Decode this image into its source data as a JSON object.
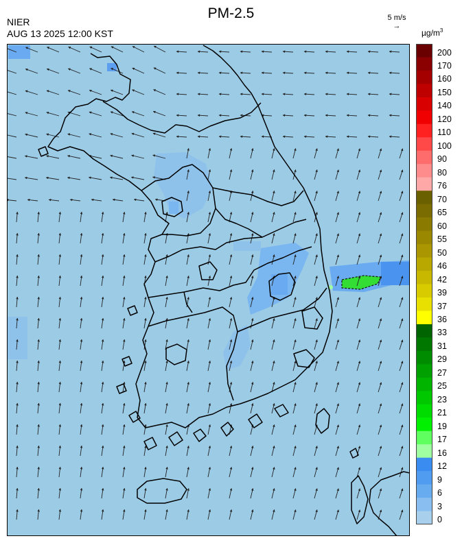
{
  "header": {
    "title": "PM-2.5",
    "agency": "NIER",
    "timestamp": "AUG 13 2025 12:00 KST",
    "wind_scale_label": "5 m/s",
    "unit_label": "µg/m",
    "unit_superscript": "3"
  },
  "legend": {
    "labels": [
      "200",
      "170",
      "160",
      "150",
      "140",
      "120",
      "110",
      "100",
      "90",
      "80",
      "76",
      "70",
      "65",
      "60",
      "55",
      "50",
      "46",
      "42",
      "39",
      "37",
      "36",
      "33",
      "31",
      "29",
      "27",
      "25",
      "23",
      "21",
      "19",
      "17",
      "16",
      "12",
      "9",
      "6",
      "3",
      "0"
    ],
    "colors": [
      "#6b0000",
      "#8b0000",
      "#a50000",
      "#be0000",
      "#d80000",
      "#f00000",
      "#ff2020",
      "#ff4848",
      "#ff6c6c",
      "#ff8c8c",
      "#ffa8a8",
      "#6b6000",
      "#7a6c00",
      "#8a7a00",
      "#9a8800",
      "#aa9600",
      "#b8a800",
      "#c8b800",
      "#d8cc00",
      "#e8e000",
      "#ffff00",
      "#006400",
      "#007800",
      "#008c00",
      "#00a000",
      "#00b400",
      "#00c800",
      "#00dc00",
      "#00f000",
      "#60ff60",
      "#a0ffa0",
      "#3a8cf0",
      "#509cf0",
      "#68acf0",
      "#88bef0",
      "#a8d0ec"
    ],
    "display_ticks": [
      "200",
      "170",
      "160",
      "150",
      "140",
      "120",
      "110",
      "100",
      "90",
      "80",
      "76",
      "70",
      "65",
      "60",
      "55",
      "50",
      "46",
      "42",
      "39",
      "37",
      "36",
      "33",
      "31",
      "29",
      "27",
      "25",
      "23",
      "21",
      "19",
      "17",
      "16",
      "12",
      "9",
      "6",
      "3",
      "0"
    ]
  },
  "map": {
    "background_color": "#9ccbe6",
    "light_patch_color": "#8fc2eb",
    "medium_patch_color": "#6aaaf0",
    "hotspot_color": "#33dd33",
    "hotspot_label": ""
  }
}
